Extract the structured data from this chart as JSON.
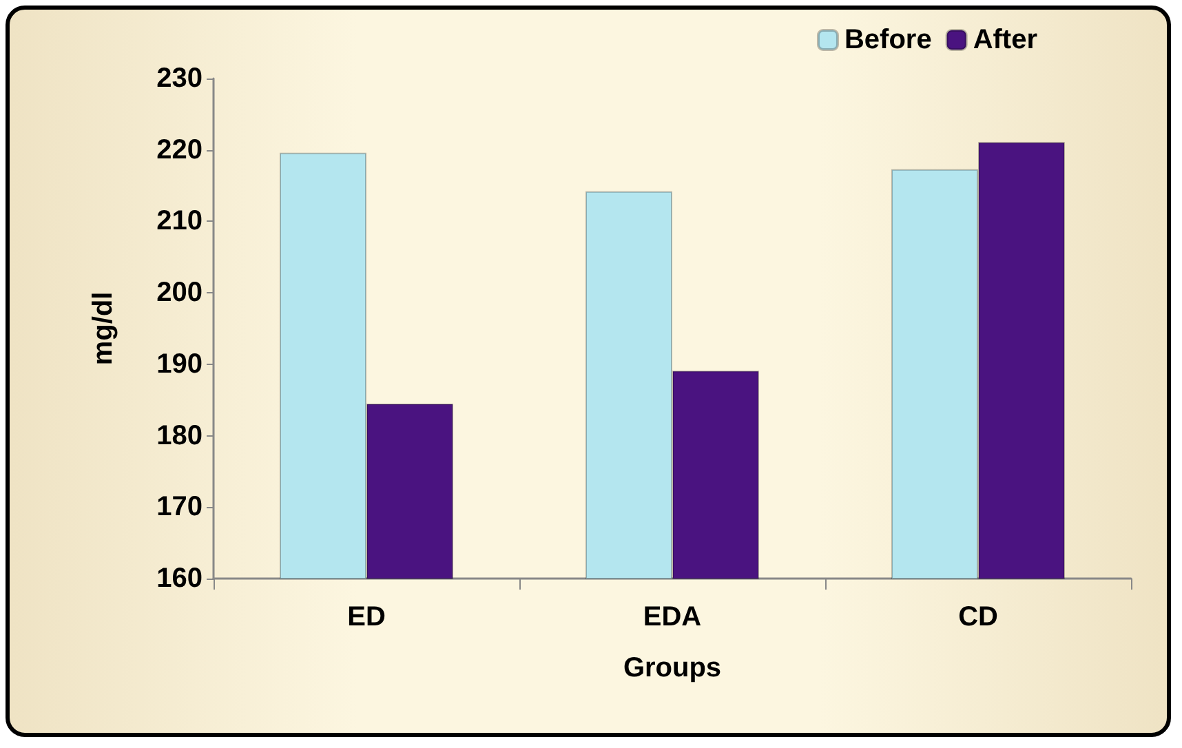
{
  "chart_data": {
    "type": "bar",
    "xlabel": "Groups",
    "ylabel": "mg/dl",
    "categories": [
      "ED",
      "EDA",
      "CD"
    ],
    "series": [
      {
        "name": "Before",
        "color": "#b4e6ef",
        "values": [
          219.6,
          214.2,
          217.3
        ]
      },
      {
        "name": "After",
        "color": "#4a1380",
        "values": [
          184.5,
          189.1,
          221.1
        ]
      }
    ],
    "ylim": [
      160,
      230
    ],
    "yticks": [
      160,
      170,
      180,
      190,
      200,
      210,
      220,
      230
    ],
    "grid": false,
    "legend": "top right"
  }
}
